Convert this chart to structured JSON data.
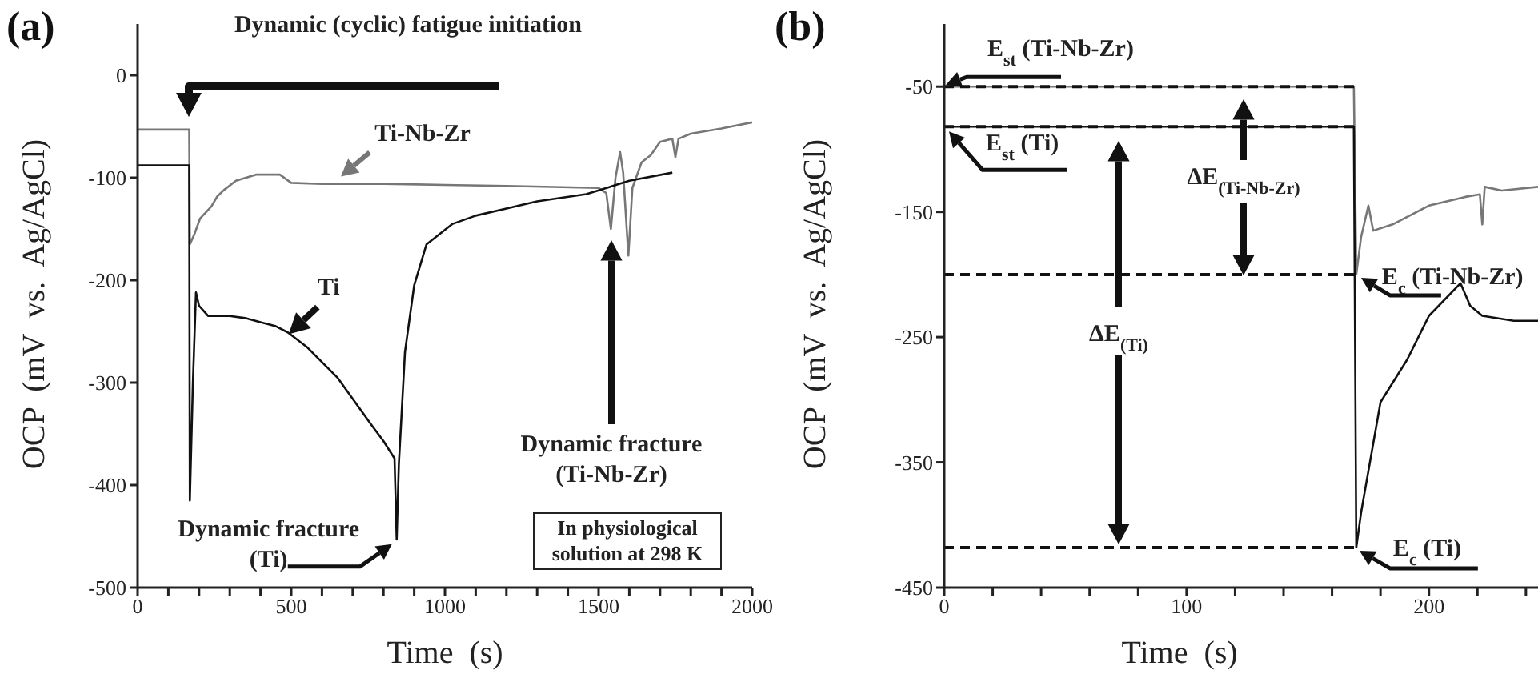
{
  "chart_data": [
    {
      "type": "line",
      "title": "(a)",
      "xlabel": "Time  (s)",
      "ylabel": "OCP  (mV  vs.  Ag/AgCl)",
      "xlim": [
        0,
        2000
      ],
      "ylim": [
        -500,
        50
      ],
      "xticks": [
        0,
        {
          "value": 100,
          "label": null
        },
        {
          "value": 200,
          "label": null
        },
        {
          "value": 300,
          "label": null
        },
        {
          "value": 400,
          "label": null
        },
        500,
        {
          "value": 600,
          "label": null
        },
        {
          "value": 700,
          "label": null
        },
        {
          "value": 800,
          "label": null
        },
        {
          "value": 900,
          "label": null
        },
        1000,
        {
          "value": 1100,
          "label": null
        },
        {
          "value": 1200,
          "label": null
        },
        {
          "value": 1300,
          "label": null
        },
        {
          "value": 1400,
          "label": null
        },
        1500,
        {
          "value": 1600,
          "label": null
        },
        {
          "value": 1700,
          "label": null
        },
        {
          "value": 1800,
          "label": null
        },
        {
          "value": 1900,
          "label": null
        },
        2000
      ],
      "yticks": [
        -500,
        -400,
        -300,
        -200,
        -100,
        0
      ],
      "marker": "none",
      "line_style": "solid",
      "series": [
        {
          "name": "Ti-Nb-Zr",
          "color": "#777777",
          "x": [
            0,
            168,
            170,
            185,
            203,
            240,
            260,
            281,
            320,
            385,
            463,
            500,
            600,
            800,
            1000,
            1200,
            1350,
            1500,
            1525,
            1540,
            1555,
            1570,
            1580,
            1597,
            1610,
            1640,
            1670,
            1700,
            1740,
            1750,
            1760,
            1800,
            1900,
            2000
          ],
          "values": [
            -53,
            -53,
            -165,
            -155,
            -140,
            -128,
            -118,
            -112,
            -103,
            -97,
            -97,
            -105,
            -106,
            -106,
            -107,
            -108,
            -109,
            -110,
            -115,
            -150,
            -100,
            -75,
            -95,
            -176,
            -110,
            -85,
            -78,
            -65,
            -62,
            -80,
            -62,
            -57,
            -52,
            -46
          ]
        },
        {
          "name": "Ti",
          "color": "#111111",
          "x": [
            0,
            168,
            170,
            180,
            190,
            200,
            230,
            300,
            350,
            400,
            450,
            489,
            550,
            650,
            765,
            800,
            836,
            843,
            850,
            870,
            900,
            940,
            1025,
            1100,
            1200,
            1300,
            1460,
            1600,
            1740
          ],
          "values": [
            -88,
            -88,
            -415,
            -300,
            -212,
            -225,
            -235,
            -235,
            -237,
            -241,
            -245,
            -251,
            -265,
            -295,
            -343,
            -357,
            -374,
            -453,
            -380,
            -270,
            -205,
            -165,
            -145,
            -137,
            -130,
            -123,
            -116,
            -103,
            -95
          ]
        }
      ],
      "annotations": [
        "Dynamic (cyclic) fatigue initiation",
        "Dynamic fracture (Ti-Nb-Zr)",
        {
          "text": "Dynamic fracture (Ti)",
          "x": 843,
          "y": -453
        },
        "In physiological solution at 298 K"
      ]
    },
    {
      "type": "line",
      "title": "(b)",
      "xlabel": "Time  (s)",
      "ylabel": "OCP  (mV  vs.  Ag/AgCl)",
      "xlim": [
        0,
        245
      ],
      "ylim": [
        -450,
        0
      ],
      "xticks": [
        0,
        {
          "value": 20,
          "label": null
        },
        {
          "value": 40,
          "label": null
        },
        {
          "value": 60,
          "label": null
        },
        {
          "value": 80,
          "label": null
        },
        100,
        {
          "value": 120,
          "label": null
        },
        {
          "value": 140,
          "label": null
        },
        {
          "value": 160,
          "label": null
        },
        {
          "value": 180,
          "label": null
        },
        200,
        {
          "value": 220,
          "label": null
        },
        {
          "value": 240,
          "label": null
        }
      ],
      "yticks": [
        -450,
        -350,
        -250,
        -150,
        -50
      ],
      "marker": "none",
      "line_style": "solid",
      "series": [
        {
          "color": "#777777",
          "x": [
            0,
            169,
            170,
            172,
            175,
            177,
            185,
            200,
            215,
            221,
            222,
            223,
            230,
            245
          ],
          "values": [
            -50,
            -50,
            -200,
            -170,
            -145,
            -165,
            -160,
            -145,
            -138,
            -136,
            -160,
            -130,
            -133,
            -130
          ]
        },
        {
          "color": "#111111",
          "x": [
            0,
            169,
            170,
            172,
            180,
            191,
            200,
            213,
            217,
            222,
            235,
            245
          ],
          "values": [
            -82,
            -82,
            -418,
            -390,
            -302,
            -268,
            -233,
            -207,
            -225,
            -233,
            -237,
            -237
          ]
        },
        {
          "color": "#111111",
          "line_style": "dashed",
          "x": [
            0,
            170
          ],
          "values": [
            -50,
            -50
          ]
        },
        {
          "color": "#111111",
          "line_style": "dashed",
          "x": [
            0,
            170
          ],
          "values": [
            -82,
            -82
          ]
        },
        {
          "color": "#111111",
          "line_style": "dashed",
          "x": [
            0,
            170
          ],
          "values": [
            -200,
            -200
          ]
        },
        {
          "color": "#111111",
          "line_style": "dashed",
          "x": [
            0,
            170
          ],
          "values": [
            -418,
            -418
          ]
        }
      ],
      "annotations": [
        {
          "text": "E$_{st}$ (Ti-Nb-Zr)",
          "x": 0,
          "y": -50
        },
        {
          "text": "E$_{st}$ (Ti)",
          "x": 0,
          "y": -82
        },
        "ΔE$_{(Ti-Nb-Zr)}$",
        "ΔE$_{(Ti)}$",
        {
          "text": "E$_{c}$ (Ti-Nb-Zr)",
          "x": 170,
          "y": -200
        },
        {
          "text": "E$_{c}$ (Ti)",
          "x": 170,
          "y": -418
        }
      ]
    }
  ]
}
